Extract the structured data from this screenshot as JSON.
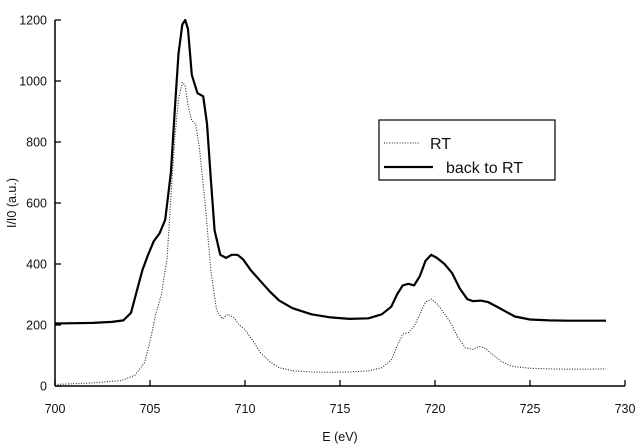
{
  "chart_data": {
    "type": "line",
    "xlabel": "E (eV)",
    "ylabel": "I/I0 (a.u.)",
    "xlim": [
      700,
      730
    ],
    "ylim": [
      0,
      1200
    ],
    "x_ticks": [
      700,
      705,
      710,
      715,
      720,
      725,
      730
    ],
    "y_ticks": [
      0,
      200,
      400,
      600,
      800,
      1000,
      1200
    ],
    "grid": false,
    "legend_position": "upper right",
    "series": [
      {
        "name": "RT",
        "style": "dotted",
        "x": [
          700.0,
          702.0,
          703.5,
          704.2,
          704.7,
          705.0,
          705.3,
          705.6,
          705.9,
          706.1,
          706.3,
          706.5,
          706.7,
          706.85,
          707.0,
          707.2,
          707.4,
          707.6,
          707.9,
          708.2,
          708.5,
          708.8,
          709.1,
          709.4,
          709.7,
          710.0,
          710.4,
          710.8,
          711.3,
          711.8,
          712.5,
          713.5,
          714.5,
          715.5,
          716.5,
          717.2,
          717.7,
          718.0,
          718.3,
          718.6,
          718.9,
          719.2,
          719.5,
          719.8,
          720.1,
          720.4,
          720.8,
          721.2,
          721.6,
          722.0,
          722.3,
          722.6,
          723.0,
          723.5,
          724.0,
          725.0,
          726.0,
          727.0,
          728.0,
          729.0
        ],
        "y": [
          5,
          10,
          18,
          35,
          75,
          145,
          235,
          300,
          420,
          620,
          810,
          940,
          995,
          985,
          920,
          870,
          860,
          780,
          600,
          380,
          250,
          220,
          235,
          225,
          200,
          185,
          150,
          110,
          80,
          60,
          50,
          46,
          45,
          46,
          50,
          60,
          85,
          130,
          170,
          175,
          195,
          235,
          275,
          285,
          270,
          245,
          210,
          160,
          125,
          120,
          130,
          125,
          105,
          80,
          65,
          58,
          56,
          55,
          55,
          56
        ]
      },
      {
        "name": "back to RT",
        "style": "solid",
        "x": [
          700.0,
          701.0,
          702.0,
          703.0,
          703.6,
          704.0,
          704.3,
          704.6,
          704.9,
          705.2,
          705.5,
          705.8,
          706.1,
          706.3,
          706.5,
          706.7,
          706.85,
          707.0,
          707.2,
          707.5,
          707.8,
          708.0,
          708.2,
          708.4,
          708.7,
          709.0,
          709.3,
          709.6,
          709.9,
          710.3,
          710.8,
          711.3,
          711.8,
          712.5,
          713.5,
          714.5,
          715.5,
          716.5,
          717.2,
          717.7,
          718.0,
          718.3,
          718.6,
          718.9,
          719.2,
          719.5,
          719.8,
          720.1,
          720.5,
          720.9,
          721.3,
          721.7,
          722.0,
          722.4,
          722.8,
          723.2,
          723.7,
          724.2,
          725.0,
          726.0,
          727.0,
          728.0,
          729.0
        ],
        "y": [
          205,
          206,
          207,
          210,
          215,
          240,
          310,
          380,
          430,
          475,
          500,
          545,
          700,
          900,
          1090,
          1185,
          1200,
          1170,
          1020,
          960,
          950,
          860,
          680,
          510,
          430,
          420,
          430,
          430,
          415,
          380,
          345,
          310,
          280,
          255,
          235,
          225,
          220,
          222,
          235,
          260,
          300,
          330,
          335,
          330,
          360,
          410,
          430,
          420,
          400,
          370,
          320,
          285,
          278,
          280,
          275,
          262,
          245,
          228,
          218,
          215,
          214,
          214,
          214
        ]
      }
    ]
  }
}
